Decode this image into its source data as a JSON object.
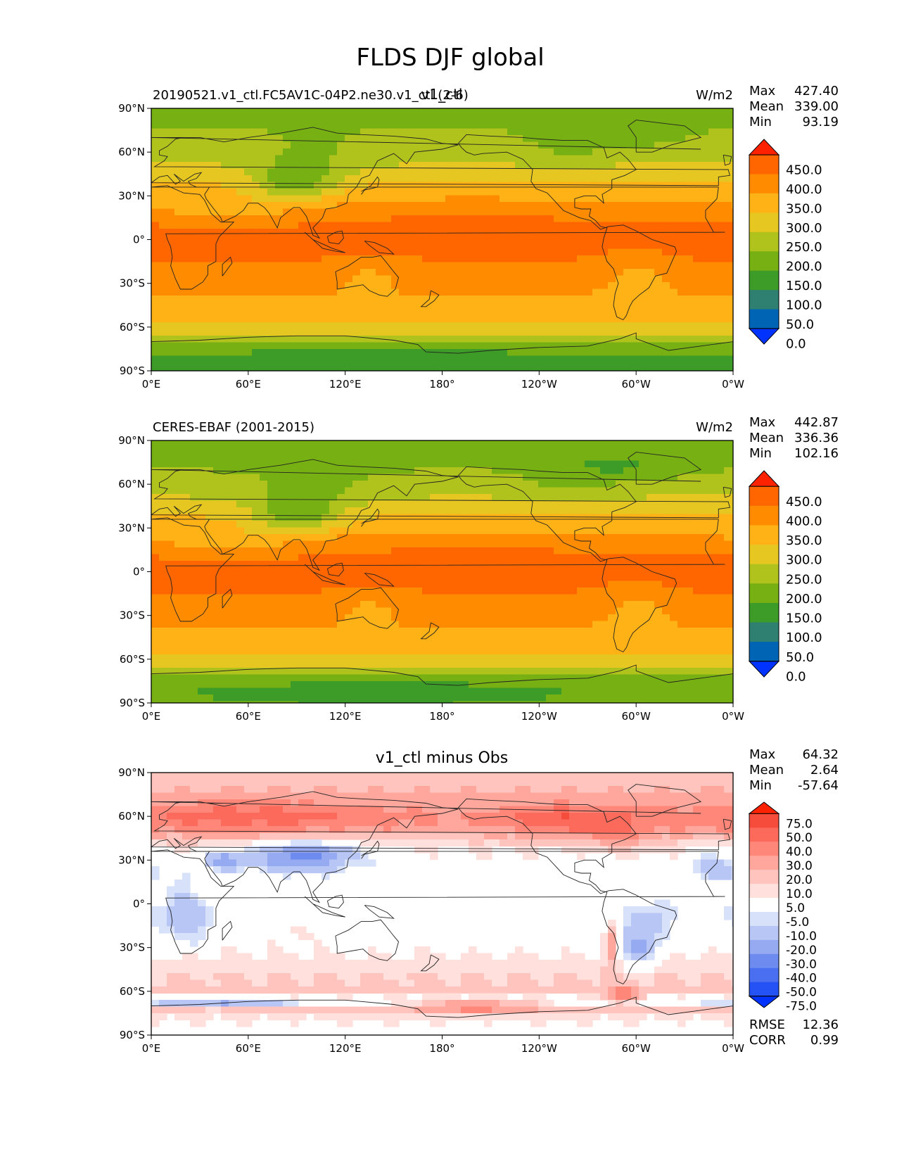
{
  "figure_title": "FLDS DJF global",
  "colors": {
    "abs_levels": [
      "#0033ff",
      "#0064b4",
      "#2f8070",
      "#3d9c27",
      "#76b013",
      "#b0c21c",
      "#e6c721",
      "#ffb215",
      "#ff8c00",
      "#ff6600",
      "#ff2200"
    ],
    "diff_levels": [
      "#0033ff",
      "#2452f5",
      "#4a6ff0",
      "#6e8cef",
      "#95aaf1",
      "#b7c6f5",
      "#d8e1fa",
      "#ffffff",
      "#ffe0dc",
      "#ffc4bd",
      "#ffa79c",
      "#ff877a",
      "#fb6a5a",
      "#f54c3c",
      "#ff2200"
    ],
    "coast": "#222222"
  },
  "chart_data": [
    {
      "type": "heatmap",
      "name": "test",
      "title_left": "20190521.v1_ctl.FC5AV1C-04P2.ne30.v1_ctl (2-6)",
      "title_center": "v1_ctl",
      "units": "W/m2",
      "stats": [
        {
          "label": "Max",
          "value": "427.40"
        },
        {
          "label": "Mean",
          "value": "339.00"
        },
        {
          "label": "Min",
          "value": "93.19"
        }
      ],
      "colorbar_ticks": [
        "450.0",
        "400.0",
        "350.0",
        "300.0",
        "250.0",
        "200.0",
        "150.0",
        "100.0",
        "50.0",
        "0.0"
      ],
      "x_ticks": [
        "0°E",
        "60°E",
        "120°E",
        "180°",
        "120°W",
        "60°W",
        "0°W"
      ],
      "y_ticks": [
        "90°N",
        "60°N",
        "30°N",
        "0°",
        "30°S",
        "60°S",
        "90°S"
      ],
      "lat_profile": [
        [
          90,
          190
        ],
        [
          80,
          195
        ],
        [
          70,
          210
        ],
        [
          60,
          235
        ],
        [
          50,
          260
        ],
        [
          40,
          300
        ],
        [
          30,
          340
        ],
        [
          20,
          380
        ],
        [
          10,
          405
        ],
        [
          0,
          410
        ],
        [
          -10,
          405
        ],
        [
          -20,
          390
        ],
        [
          -30,
          365
        ],
        [
          -40,
          345
        ],
        [
          -50,
          320
        ],
        [
          -60,
          290
        ],
        [
          -67,
          255
        ],
        [
          -72,
          200
        ],
        [
          -80,
          150
        ],
        [
          -90,
          145
        ]
      ]
    },
    {
      "type": "heatmap",
      "name": "reference",
      "title_left": "CERES-EBAF (2001-2015)",
      "title_center": "",
      "units": "W/m2",
      "stats": [
        {
          "label": "Max",
          "value": "442.87"
        },
        {
          "label": "Mean",
          "value": "336.36"
        },
        {
          "label": "Min",
          "value": "102.16"
        }
      ],
      "colorbar_ticks": [
        "450.0",
        "400.0",
        "350.0",
        "300.0",
        "250.0",
        "200.0",
        "150.0",
        "100.0",
        "50.0",
        "0.0"
      ],
      "x_ticks": [
        "0°E",
        "60°E",
        "120°E",
        "180°",
        "120°W",
        "60°W",
        "0°W"
      ],
      "y_ticks": [
        "90°N",
        "60°N",
        "30°N",
        "0°",
        "30°S",
        "60°S",
        "90°S"
      ],
      "lat_profile": [
        [
          90,
          180
        ],
        [
          80,
          185
        ],
        [
          70,
          200
        ],
        [
          60,
          225
        ],
        [
          50,
          255
        ],
        [
          40,
          295
        ],
        [
          30,
          335
        ],
        [
          20,
          380
        ],
        [
          10,
          405
        ],
        [
          0,
          410
        ],
        [
          -10,
          405
        ],
        [
          -20,
          390
        ],
        [
          -30,
          365
        ],
        [
          -40,
          345
        ],
        [
          -50,
          320
        ],
        [
          -60,
          290
        ],
        [
          -67,
          260
        ],
        [
          -72,
          200
        ],
        [
          -80,
          160
        ],
        [
          -90,
          155
        ]
      ]
    },
    {
      "type": "heatmap",
      "name": "difference",
      "title_left": "",
      "title_center": "v1_ctl minus Obs",
      "units": "",
      "stats": [
        {
          "label": "Max",
          "value": "64.32"
        },
        {
          "label": "Mean",
          "value": "2.64"
        },
        {
          "label": "Min",
          "value": "-57.64"
        }
      ],
      "colorbar_ticks": [
        "75.0",
        "50.0",
        "40.0",
        "30.0",
        "20.0",
        "10.0",
        "5.0",
        "-5.0",
        "-10.0",
        "-20.0",
        "-30.0",
        "-40.0",
        "-50.0",
        "-75.0"
      ],
      "x_ticks": [
        "0°E",
        "60°E",
        "120°E",
        "180°",
        "120°W",
        "60°W",
        "0°W"
      ],
      "y_ticks": [
        "90°N",
        "60°N",
        "30°N",
        "0°",
        "30°S",
        "60°S",
        "90°S"
      ],
      "lat_profile": [
        [
          90,
          12
        ],
        [
          80,
          18
        ],
        [
          70,
          22
        ],
        [
          60,
          28
        ],
        [
          50,
          24
        ],
        [
          40,
          6
        ],
        [
          30,
          2
        ],
        [
          20,
          0
        ],
        [
          10,
          2
        ],
        [
          0,
          0
        ],
        [
          -10,
          -2
        ],
        [
          -20,
          0
        ],
        [
          -30,
          2
        ],
        [
          -40,
          8
        ],
        [
          -50,
          10
        ],
        [
          -60,
          14
        ],
        [
          -67,
          -6
        ],
        [
          -72,
          12
        ],
        [
          -80,
          4
        ],
        [
          -90,
          0
        ]
      ],
      "bottom_stats": [
        {
          "label": "RMSE",
          "value": "12.36"
        },
        {
          "label": "CORR",
          "value": "0.99"
        }
      ]
    }
  ]
}
